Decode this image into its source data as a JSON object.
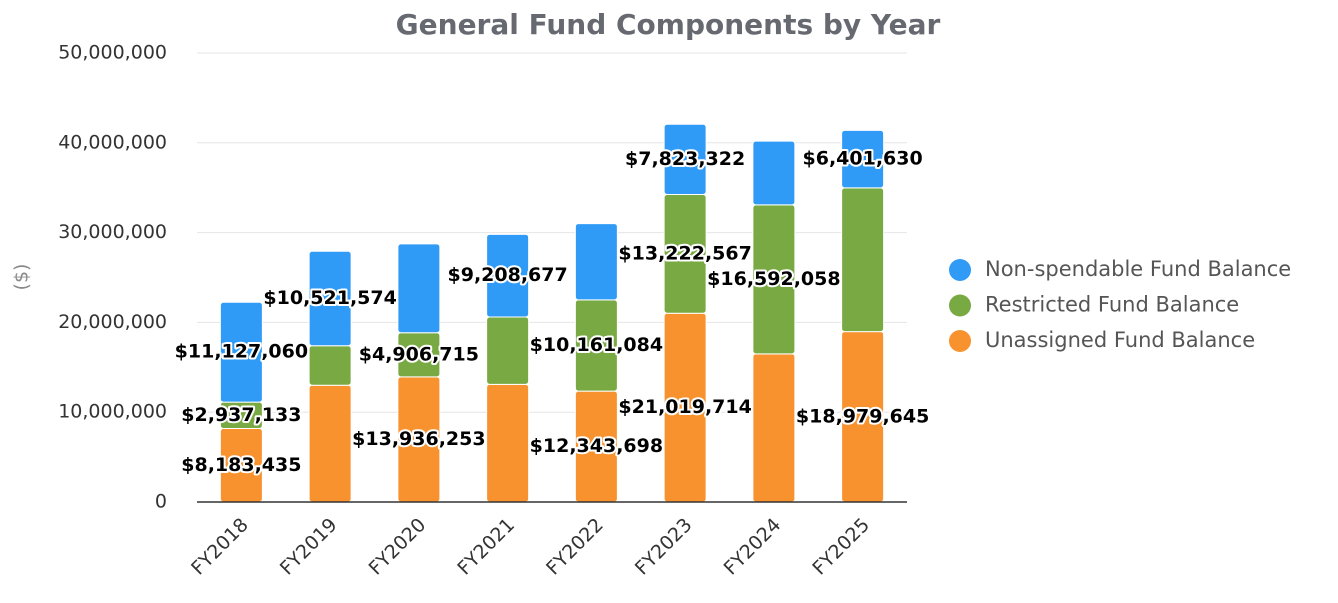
{
  "chart_data": {
    "type": "stacked_bar",
    "title": "General Fund Components by Year",
    "y_label": "($)",
    "categories": [
      "FY2018",
      "FY2019",
      "FY2020",
      "FY2021",
      "FY2022",
      "FY2023",
      "FY2024",
      "FY2025"
    ],
    "series": [
      {
        "name": "Unassigned Fund Balance",
        "color": "#f7922e",
        "values": [
          8183435,
          13000000,
          13936253,
          13100000,
          12343698,
          21019714,
          16500000,
          18979645
        ],
        "value_labels": [
          "$8,183,435",
          null,
          "$13,936,253",
          null,
          "$12,343,698",
          "$21,019,714",
          null,
          "$18,979,645"
        ]
      },
      {
        "name": "Restricted Fund Balance",
        "color": "#78a943",
        "values": [
          2937133,
          4400000,
          4906715,
          7500000,
          10161084,
          13222567,
          16592058,
          16000000
        ],
        "value_labels": [
          "$2,937,133",
          null,
          "$4,906,715",
          null,
          "$10,161,084",
          "$13,222,567",
          "$16,592,058",
          null
        ]
      },
      {
        "name": "Non-spendable Fund Balance",
        "color": "#2f9bf6",
        "values": [
          11127060,
          10521574,
          9900000,
          9208677,
          8500000,
          7823322,
          7100000,
          6401630
        ],
        "value_labels": [
          "$11,127,060",
          "$10,521,574",
          null,
          "$9,208,677",
          null,
          "$7,823,322",
          null,
          "$6,401,630"
        ]
      }
    ],
    "ylim": [
      0,
      50000000
    ],
    "yticks": [
      0,
      {
        "value": 10000000,
        "label": "10,000,000"
      },
      {
        "value": 20000000,
        "label": "20,000,000"
      },
      {
        "value": 30000000,
        "label": "30,000,000"
      },
      {
        "value": 40000000,
        "label": "40,000,000"
      },
      {
        "value": 50000000,
        "label": "50,000,000"
      }
    ],
    "grid": true,
    "legend": "right"
  }
}
